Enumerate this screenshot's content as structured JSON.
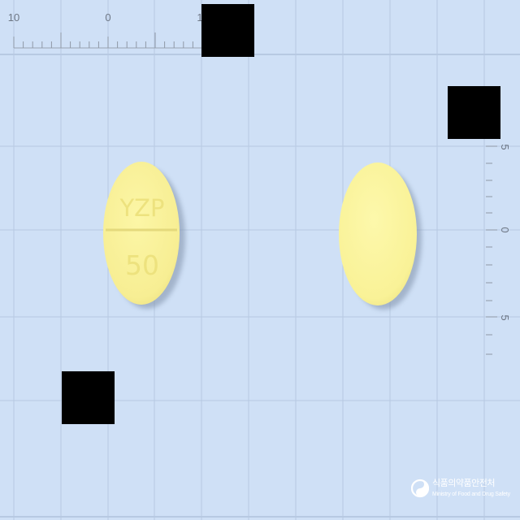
{
  "ruler_top": {
    "labels": [
      "10",
      "0",
      "1"
    ]
  },
  "ruler_right": {
    "labels": [
      "5",
      "0",
      "5"
    ]
  },
  "tablet_front": {
    "imprint_top": "YZP",
    "imprint_bottom": "50",
    "color": "#f9f197"
  },
  "tablet_back": {
    "color": "#fcf59a"
  },
  "redaction_color": "#000000",
  "watermark": {
    "org_korean": "식품의약품안전처",
    "org_english": "Ministry of Food and Drug Safety"
  }
}
